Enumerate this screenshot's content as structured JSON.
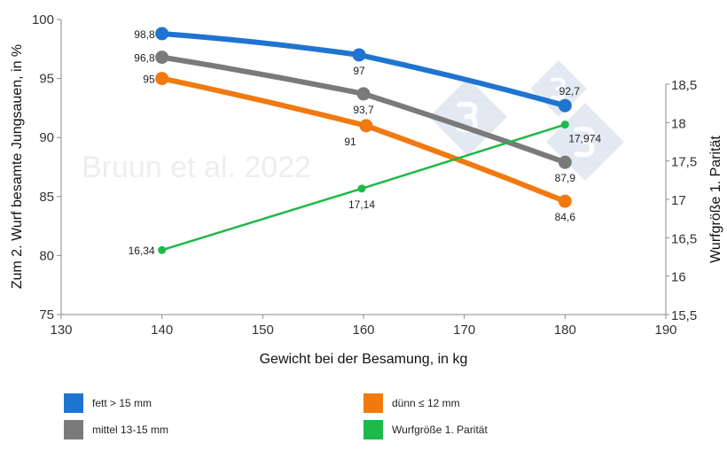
{
  "chart_data": {
    "type": "line",
    "watermark": "Bruun et al. 2022",
    "xlabel": "Gewicht bei der Besamung, in kg",
    "ylabel": "Zum 2. Wurf besamte Jungsauen, in %",
    "y2label": "Wurfgröße 1. Parität",
    "xlim": [
      130,
      190
    ],
    "ylim": [
      75,
      100
    ],
    "y2lim": [
      15.5,
      18.5
    ],
    "xticks": [
      "130",
      "140",
      "150",
      "160",
      "170",
      "180",
      "190"
    ],
    "yticks": [
      "75",
      "80",
      "85",
      "90",
      "95",
      "100"
    ],
    "y2ticks": [
      "15,5",
      "16",
      "16,5",
      "17",
      "17,5",
      "18",
      "18,5"
    ],
    "grid": false,
    "legend_position": "bottom",
    "x": [
      140,
      160,
      180
    ],
    "series": [
      {
        "name": "fett > 15 mm",
        "color": "#1f74d1",
        "axis": "left",
        "values": [
          98.8,
          97,
          92.7
        ],
        "labels": [
          "98,8",
          "97",
          "92,7"
        ]
      },
      {
        "name": "mittel 13-15 mm",
        "color": "#7a7a7a",
        "axis": "left",
        "values": [
          96.8,
          93.7,
          87.9
        ],
        "labels": [
          "96,8",
          "93,7",
          "87,9"
        ]
      },
      {
        "name": "dünn ≤ 12 mm",
        "color": "#f07a10",
        "axis": "left",
        "values": [
          95,
          91,
          84.6
        ],
        "labels": [
          "95",
          "91",
          "84,6"
        ]
      },
      {
        "name": "Wurfgröße 1. Parität",
        "color": "#1db94a",
        "axis": "right",
        "values": [
          16.34,
          17.14,
          17.974
        ],
        "labels": [
          "16,34",
          "17,14",
          "17,974"
        ]
      }
    ]
  }
}
